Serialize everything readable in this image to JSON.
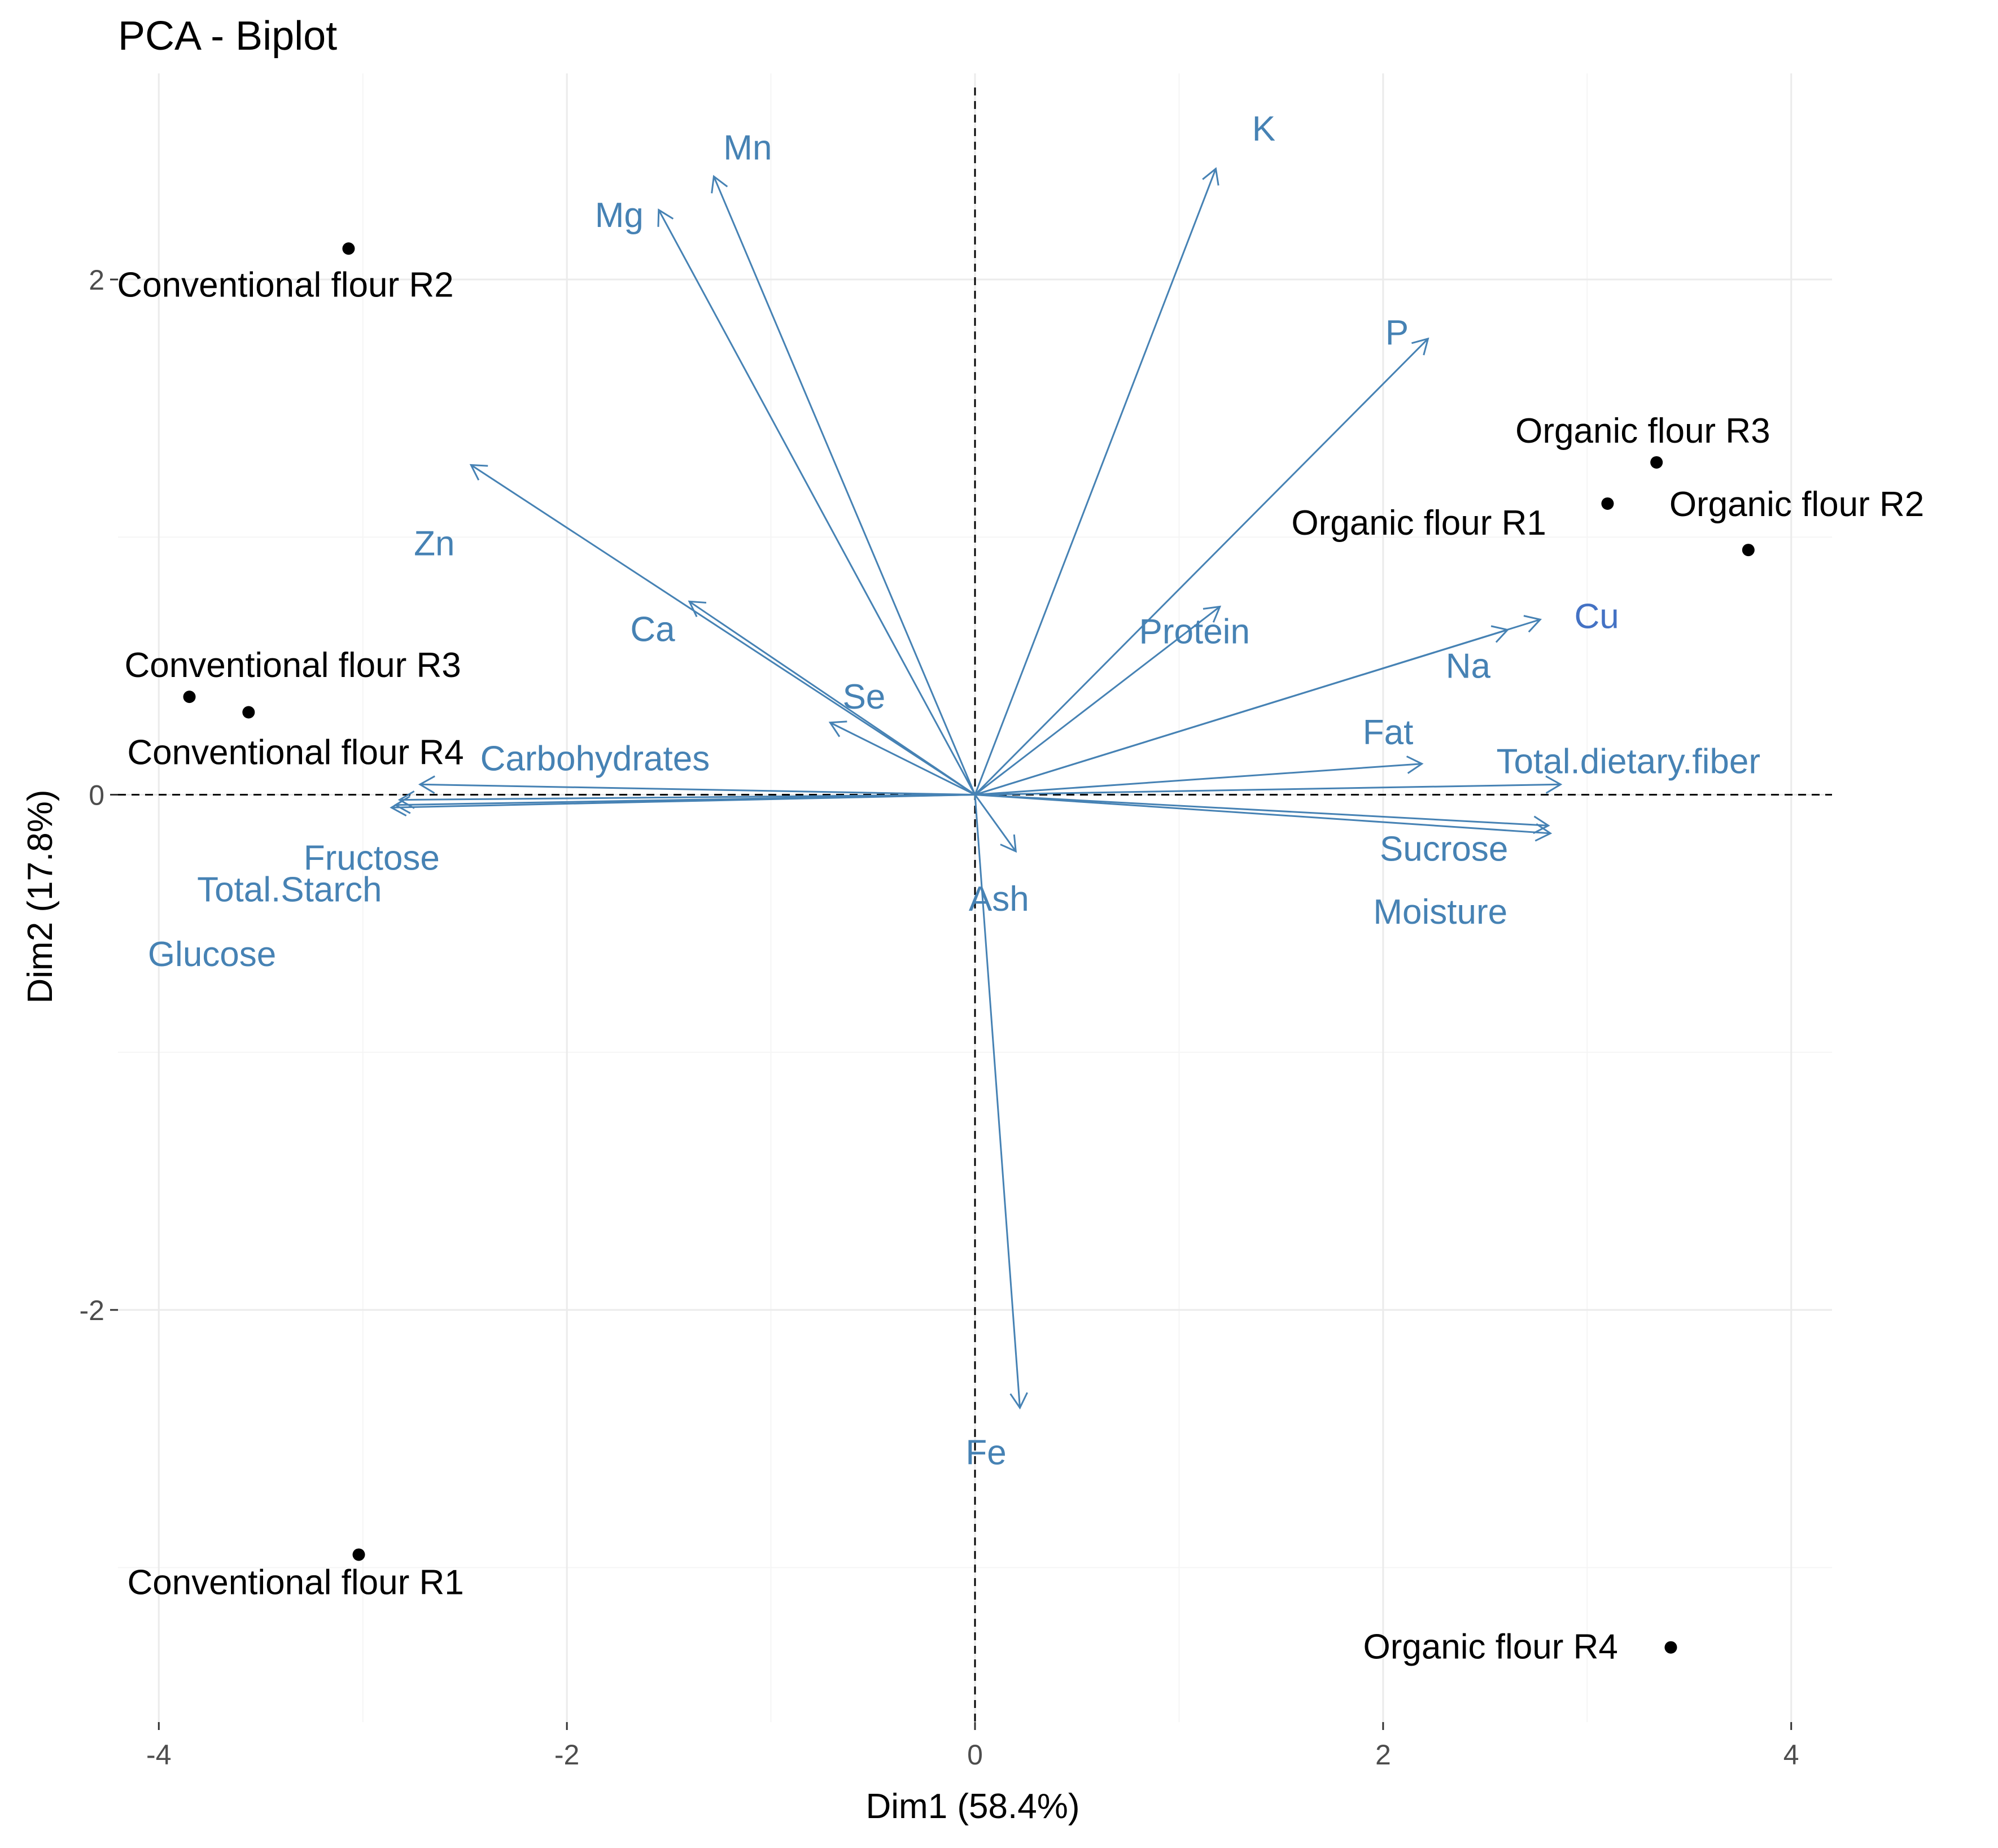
{
  "chart_data": {
    "type": "scatter",
    "subtype": "pca-biplot",
    "title": "PCA - Biplot",
    "xlabel": "Dim1 (58.4%)",
    "ylabel": "Dim2 (17.8%)",
    "xlim": [
      -4.2,
      4.2
    ],
    "ylim": [
      -3.6,
      2.8
    ],
    "xticks": [
      -4,
      -2,
      0,
      2,
      4
    ],
    "xtick_labels": [
      "-4",
      "-2",
      "0",
      "2",
      "4"
    ],
    "yticks": [
      -2,
      0,
      2
    ],
    "ytick_labels": [
      "-2",
      "0",
      "2"
    ],
    "grid": true,
    "colors": {
      "points": "#000000",
      "arrows": "#4682b4",
      "cu_label": "#4472c4",
      "grid": "#ebebeb"
    },
    "observations": [
      {
        "label": "Conventional flour R1",
        "x": -3.02,
        "y": -2.95
      },
      {
        "label": "Conventional flour R2",
        "x": -3.07,
        "y": 2.12
      },
      {
        "label": "Conventional flour R3",
        "x": -3.85,
        "y": 0.38
      },
      {
        "label": "Conventional flour R4",
        "x": -3.56,
        "y": 0.32
      },
      {
        "label": "Organic flour R1",
        "x": 3.1,
        "y": 1.13
      },
      {
        "label": "Organic flour R2",
        "x": 3.79,
        "y": 0.95
      },
      {
        "label": "Organic flour R3",
        "x": 3.34,
        "y": 1.29
      },
      {
        "label": "Organic flour R4",
        "x": 3.41,
        "y": -3.31
      }
    ],
    "variables": [
      {
        "label": "Mn",
        "x": -1.28,
        "y": 2.4
      },
      {
        "label": "Mg",
        "x": -1.55,
        "y": 2.27
      },
      {
        "label": "K",
        "x": 1.18,
        "y": 2.43
      },
      {
        "label": "P",
        "x": 2.22,
        "y": 1.77
      },
      {
        "label": "Zn",
        "x": -2.47,
        "y": 1.28
      },
      {
        "label": "Ca",
        "x": -1.4,
        "y": 0.75
      },
      {
        "label": "Se",
        "x": -0.71,
        "y": 0.28
      },
      {
        "label": "Protein",
        "x": 1.2,
        "y": 0.73
      },
      {
        "label": "Cu",
        "x": 2.77,
        "y": 0.68
      },
      {
        "label": "Na",
        "x": 2.61,
        "y": 0.64
      },
      {
        "label": "Fat",
        "x": 2.19,
        "y": 0.12
      },
      {
        "label": "Total.dietary.fiber",
        "x": 2.87,
        "y": 0.04
      },
      {
        "label": "Sucrose",
        "x": 2.81,
        "y": -0.12
      },
      {
        "label": "Moisture",
        "x": 2.82,
        "y": -0.15
      },
      {
        "label": "Ash",
        "x": 0.2,
        "y": -0.22
      },
      {
        "label": "Fe",
        "x": 0.22,
        "y": -2.38
      },
      {
        "label": "Carbohydrates",
        "x": -2.72,
        "y": 0.04
      },
      {
        "label": "Fructose",
        "x": -2.86,
        "y": -0.05
      },
      {
        "label": "Total.Starch",
        "x": -2.82,
        "y": -0.02
      },
      {
        "label": "Glucose",
        "x": -2.84,
        "y": -0.04
      }
    ]
  }
}
